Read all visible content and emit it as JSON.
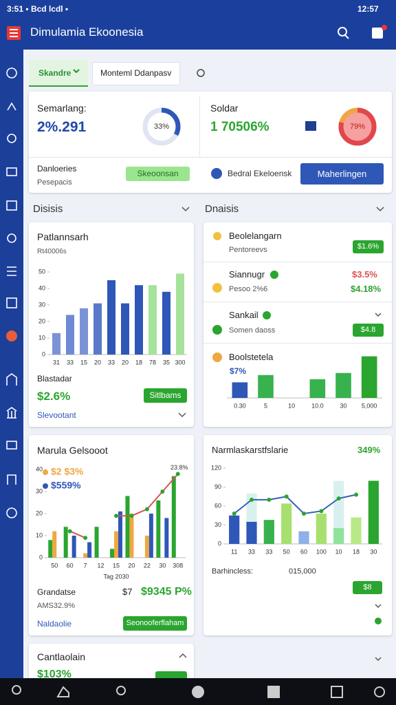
{
  "status_bar": {
    "left": "3:51 ▪ Bcd lcdl ▪",
    "right": "12:57"
  },
  "app_bar": {
    "title": "Dimulamia Ekoonesia"
  },
  "tabs": [
    "Skandre",
    "Monteml Ddanpasv"
  ],
  "summary": {
    "left": {
      "label": "Semarlang:",
      "value": "2%.291",
      "percent": 33,
      "percent_label": "33%"
    },
    "right": {
      "label": "Soldar",
      "value": "1 70506%",
      "percent": 79,
      "percent_label": "79%"
    },
    "footer": {
      "label": "Danloeries",
      "sub": "Pesepacis",
      "button": "Skeoonsan",
      "link": "Bedral Ekeloensk",
      "action": "Maherlingen"
    }
  },
  "sections": [
    "Disisis",
    "Dnaisis"
  ],
  "card_bars": {
    "title": "Patlannsarh",
    "subtitle": "Rt40006s",
    "chart": {
      "type": "bar",
      "categories": [
        "31",
        "33",
        "15",
        "20",
        "33",
        "20",
        "18",
        "78",
        "35",
        "300"
      ],
      "values": [
        13,
        24,
        28,
        31,
        45,
        31,
        42,
        42,
        38,
        49
      ],
      "colors": [
        "#7b93d6",
        "#6d8ad3",
        "#7b93d6",
        "#5a79c9",
        "#2f57b8",
        "#2f57b8",
        "#2f57b8",
        "#a6e39a",
        "#2f57b8",
        "#a6e39a"
      ],
      "ylim": [
        0,
        50
      ],
      "yticks": [
        0,
        10,
        20,
        30,
        40,
        50
      ]
    },
    "label": "Blastadar",
    "value": "$2.6%",
    "button": "Sitlbams",
    "link": "Slevootant"
  },
  "card_list": {
    "items": [
      {
        "title": "Beolelangarn",
        "sub": "Pentoreevs",
        "badge": "$1.6%"
      },
      {
        "title": "Siannugr",
        "sub": "Pesoo 2%6",
        "value": "$3.5%",
        "value2": "$4.18%"
      },
      {
        "title": "Sankail",
        "sub": "Somen daoss",
        "badge": "$4.8"
      },
      {
        "title": "Boolstetela",
        "value": "$7%",
        "chart": {
          "type": "bar",
          "categories": [
            "0.30",
            "5",
            "10",
            "10.0",
            "30",
            "5,000"
          ],
          "values": [
            15,
            22,
            null,
            18,
            24,
            40
          ],
          "colors": [
            "#2f57b8",
            "#37b24d",
            "#37b24d",
            "#37b24d",
            "#37b24d",
            "#2aa52f"
          ],
          "ylim": [
            0,
            45
          ]
        }
      }
    ]
  },
  "card_combo": {
    "title": "Marula Gelsooot",
    "note": "23.8%",
    "chart": {
      "type": "combo",
      "grouped": true,
      "categories": [
        "50",
        "60",
        "7",
        "12",
        "15",
        "20",
        "22",
        "30",
        "308"
      ],
      "series": [
        {
          "type": "bar",
          "color": "#2aa52f",
          "values": [
            8,
            14,
            null,
            14,
            4,
            28,
            null,
            26,
            37
          ]
        },
        {
          "type": "bar",
          "name": "$2 $3%",
          "color": "#f0a742",
          "values": [
            12,
            null,
            2,
            null,
            12,
            20,
            10,
            null,
            null
          ]
        },
        {
          "type": "bar",
          "name": "$559%",
          "color": "#2f57b8",
          "values": [
            null,
            10,
            7,
            null,
            21,
            null,
            20,
            18,
            null
          ]
        },
        {
          "type": "line",
          "color": "#d9534f",
          "values": [
            null,
            12,
            9,
            null,
            19,
            19,
            22,
            30,
            38
          ]
        }
      ],
      "ylim": [
        0,
        40
      ],
      "yticks": [
        0,
        10,
        20,
        30,
        40
      ],
      "xlabel": "Tag 2030"
    },
    "label": "Grandatse",
    "value_small": "$7",
    "value": "$9345 P%",
    "sub": "AMS32.9%",
    "link": "Naldaolie",
    "button": "Seonooferflaham"
  },
  "card_lines": {
    "title": "Narmlaskarstfslarie",
    "value": "349%",
    "chart": {
      "type": "combo",
      "categories": [
        "11",
        "33",
        "33",
        "50",
        "60",
        "100",
        "10",
        "18",
        "30"
      ],
      "series": [
        {
          "type": "bar",
          "color": "#d8f1ef",
          "values": [
            null,
            80,
            null,
            null,
            null,
            null,
            100,
            null,
            null
          ]
        },
        {
          "type": "bar",
          "colors": [
            "#2f57b8",
            "#2f57b8",
            "#37b24d",
            "#a8e06f",
            "#8fb0e8",
            "#a8e06f",
            "#8fe39a",
            "#b8e986",
            "#2aa52f"
          ],
          "values": [
            45,
            35,
            38,
            64,
            20,
            48,
            25,
            42,
            100
          ]
        },
        {
          "type": "line",
          "color": "#3460b8",
          "values": [
            48,
            70,
            70,
            75,
            48,
            52,
            72,
            78,
            null
          ]
        }
      ],
      "ylim": [
        0,
        120
      ],
      "yticks": [
        0,
        30,
        60,
        90,
        120
      ]
    },
    "label": "Barhincless:",
    "amount": "015,000",
    "badge": "$8"
  },
  "card_bottom": {
    "title": "Cantlaolain",
    "value": "$103%"
  }
}
